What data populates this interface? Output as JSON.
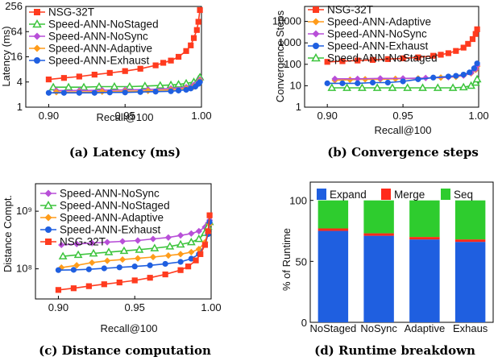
{
  "colors": {
    "NSG-32T": "#ff3b1f",
    "Speed-ANN-NoStaged": "#3cc43c",
    "Speed-ANN-NoSync": "#b84fd8",
    "Speed-ANN-Adaptive": "#ff9c1a",
    "Speed-ANN-Exhaust": "#1f5fe0",
    "Expand": "#1f5fe0",
    "Merge": "#ff2a1a",
    "Seq": "#2ecc2e"
  },
  "chart_data": [
    {
      "id": "a",
      "type": "line",
      "caption": "(a) Latency (ms)",
      "xlabel": "Recall@100",
      "ylabel": "Latency (ms)",
      "xscale": "linear",
      "yscale": "log",
      "xlim": [
        0.885,
        1.0
      ],
      "ylim": [
        1,
        256
      ],
      "xticks": [
        0.9,
        0.95,
        1.0
      ],
      "xtick_labels": [
        "0.90",
        "0.95",
        "1.00"
      ],
      "yticks": [
        1,
        4,
        16,
        64,
        256
      ],
      "ytick_labels": [
        "1",
        "4",
        "16",
        "64",
        "256"
      ],
      "legend": "top-left",
      "series": [
        {
          "name": "NSG-32T",
          "marker": "square",
          "x": [
            0.9,
            0.91,
            0.92,
            0.93,
            0.94,
            0.95,
            0.96,
            0.97,
            0.975,
            0.98,
            0.985,
            0.99,
            0.993,
            0.995,
            0.997,
            0.998,
            0.999
          ],
          "y": [
            4.6,
            5.0,
            5.4,
            6.0,
            6.6,
            7.3,
            8.3,
            10,
            11.5,
            13,
            16,
            22,
            30,
            45,
            70,
            110,
            210
          ]
        },
        {
          "name": "Speed-ANN-NoStaged",
          "marker": "triangle",
          "x": [
            0.903,
            0.913,
            0.923,
            0.933,
            0.943,
            0.953,
            0.963,
            0.973,
            0.98,
            0.985,
            0.99,
            0.995,
            0.998,
            0.999
          ],
          "y": [
            3.0,
            3.0,
            3.0,
            3.1,
            3.1,
            3.1,
            3.2,
            3.3,
            3.4,
            3.5,
            3.7,
            4.0,
            4.6,
            5.2
          ]
        },
        {
          "name": "Speed-ANN-NoSync",
          "marker": "diamond",
          "x": [
            0.905,
            0.92,
            0.935,
            0.95,
            0.965,
            0.98,
            0.99,
            0.995,
            0.998,
            0.999
          ],
          "y": [
            2.5,
            2.5,
            2.55,
            2.6,
            2.65,
            2.8,
            3.0,
            3.4,
            4.0,
            4.6
          ]
        },
        {
          "name": "Speed-ANN-Adaptive",
          "marker": "diamond",
          "x": [
            0.905,
            0.92,
            0.935,
            0.95,
            0.965,
            0.98,
            0.99,
            0.995,
            0.998,
            0.999
          ],
          "y": [
            2.3,
            2.3,
            2.35,
            2.4,
            2.45,
            2.6,
            2.8,
            3.1,
            3.7,
            4.3
          ]
        },
        {
          "name": "Speed-ANN-Exhaust",
          "marker": "circle",
          "x": [
            0.9,
            0.91,
            0.92,
            0.93,
            0.94,
            0.95,
            0.96,
            0.97,
            0.98,
            0.985,
            0.99,
            0.993,
            0.996,
            0.998,
            0.999
          ],
          "y": [
            2.2,
            2.2,
            2.2,
            2.2,
            2.25,
            2.25,
            2.3,
            2.35,
            2.4,
            2.5,
            2.6,
            2.8,
            3.1,
            3.6,
            4.0
          ]
        }
      ]
    },
    {
      "id": "b",
      "type": "line",
      "caption": "(b) Convergence steps",
      "xlabel": "Recall@100",
      "ylabel": "Convergence Steps",
      "xscale": "linear",
      "yscale": "log",
      "xlim": [
        0.885,
        1.0
      ],
      "ylim": [
        1,
        50000
      ],
      "xticks": [
        0.9,
        0.95,
        1.0
      ],
      "xtick_labels": [
        "0.90",
        "0.95",
        "1.00"
      ],
      "yticks": [
        1,
        10,
        100,
        1000,
        10000
      ],
      "ytick_labels": [
        "1",
        "10",
        "100",
        "1000",
        "10000"
      ],
      "legend": "top-left",
      "series": [
        {
          "name": "NSG-32T",
          "marker": "square",
          "x": [
            0.9,
            0.91,
            0.92,
            0.93,
            0.94,
            0.95,
            0.96,
            0.97,
            0.975,
            0.98,
            0.985,
            0.99,
            0.993,
            0.996,
            0.998,
            0.999
          ],
          "y": [
            130,
            140,
            150,
            160,
            175,
            190,
            210,
            250,
            280,
            330,
            420,
            600,
            900,
            1500,
            2600,
            4300
          ]
        },
        {
          "name": "Speed-ANN-Adaptive",
          "marker": "diamond",
          "x": [
            0.905,
            0.915,
            0.925,
            0.935,
            0.945,
            0.96,
            0.975,
            0.985,
            0.99,
            0.995,
            0.998,
            0.999
          ],
          "y": [
            18,
            19,
            20,
            20,
            21,
            22,
            24,
            26,
            30,
            38,
            55,
            80
          ]
        },
        {
          "name": "Speed-ANN-NoSync",
          "marker": "diamond",
          "x": [
            0.905,
            0.92,
            0.935,
            0.95,
            0.965,
            0.98,
            0.99,
            0.995,
            0.998,
            0.999
          ],
          "y": [
            21,
            21,
            22,
            22,
            23,
            25,
            30,
            40,
            60,
            90
          ]
        },
        {
          "name": "Speed-ANN-Exhaust",
          "marker": "circle",
          "x": [
            0.9,
            0.91,
            0.92,
            0.93,
            0.94,
            0.95,
            0.96,
            0.97,
            0.98,
            0.985,
            0.99,
            0.994,
            0.997,
            0.999
          ],
          "y": [
            13,
            13,
            13,
            14,
            14,
            16,
            20,
            24,
            27,
            29,
            33,
            42,
            65,
            110
          ]
        },
        {
          "name": "Speed-ANN-NoStaged",
          "marker": "triangle",
          "x": [
            0.903,
            0.913,
            0.923,
            0.933,
            0.943,
            0.953,
            0.963,
            0.973,
            0.983,
            0.99,
            0.995,
            0.998,
            0.999
          ],
          "y": [
            8,
            8,
            8,
            8,
            8,
            8,
            8,
            8,
            8,
            8.5,
            10,
            14,
            20
          ]
        }
      ]
    },
    {
      "id": "c",
      "type": "line",
      "caption": "(c) Distance computation",
      "xlabel": "Recall@100",
      "ylabel": "Distance Compt.",
      "xscale": "linear",
      "yscale": "log",
      "xlim": [
        0.885,
        1.0
      ],
      "ylim": [
        30000000,
        3000000000
      ],
      "xticks": [
        0.9,
        0.95,
        1.0
      ],
      "xtick_labels": [
        "0.90",
        "0.95",
        "1.00"
      ],
      "yticks": [
        100000000,
        1000000000
      ],
      "ytick_labels": [
        "10⁸",
        "10⁹"
      ],
      "legend": "top-left",
      "series": [
        {
          "name": "Speed-ANN-NoSync",
          "marker": "diamond",
          "x": [
            0.902,
            0.912,
            0.922,
            0.932,
            0.942,
            0.952,
            0.962,
            0.972,
            0.98,
            0.987,
            0.992,
            0.996,
            0.998,
            0.999
          ],
          "y": [
            260000000,
            270000000,
            280000000,
            290000000,
            300000000,
            310000000,
            330000000,
            350000000,
            380000000,
            410000000,
            450000000,
            530000000,
            620000000,
            700000000
          ]
        },
        {
          "name": "Speed-ANN-NoStaged",
          "marker": "triangle",
          "x": [
            0.903,
            0.913,
            0.923,
            0.933,
            0.943,
            0.953,
            0.963,
            0.973,
            0.98,
            0.987,
            0.992,
            0.996,
            0.998,
            0.999
          ],
          "y": [
            165000000,
            175000000,
            185000000,
            195000000,
            205000000,
            215000000,
            228000000,
            245000000,
            265000000,
            290000000,
            330000000,
            420000000,
            540000000,
            650000000
          ]
        },
        {
          "name": "Speed-ANN-Adaptive",
          "marker": "diamond",
          "x": [
            0.902,
            0.912,
            0.922,
            0.932,
            0.942,
            0.952,
            0.962,
            0.972,
            0.98,
            0.987,
            0.992,
            0.996,
            0.998,
            0.999
          ],
          "y": [
            105000000,
            115000000,
            128000000,
            138000000,
            145000000,
            152000000,
            160000000,
            170000000,
            180000000,
            195000000,
            220000000,
            290000000,
            420000000,
            600000000
          ]
        },
        {
          "name": "Speed-ANN-Exhaust",
          "marker": "circle",
          "x": [
            0.9,
            0.91,
            0.92,
            0.93,
            0.94,
            0.95,
            0.96,
            0.97,
            0.98,
            0.987,
            0.992,
            0.996,
            0.998,
            0.999
          ],
          "y": [
            95000000,
            96000000,
            98000000,
            102000000,
            106000000,
            110000000,
            115000000,
            122000000,
            132000000,
            150000000,
            180000000,
            260000000,
            400000000,
            650000000
          ]
        },
        {
          "name": "NSG-32T",
          "marker": "square",
          "x": [
            0.9,
            0.91,
            0.92,
            0.93,
            0.94,
            0.95,
            0.96,
            0.97,
            0.98,
            0.985,
            0.99,
            0.993,
            0.996,
            0.998,
            0.999
          ],
          "y": [
            43000000,
            46000000,
            50000000,
            54000000,
            58000000,
            63000000,
            70000000,
            80000000,
            95000000,
            110000000,
            140000000,
            180000000,
            260000000,
            450000000,
            850000000
          ]
        }
      ]
    },
    {
      "id": "d",
      "type": "bar",
      "stacked": true,
      "caption": "(d) Runtime breakdown",
      "ylabel": "% of Runtime",
      "ylim": [
        0,
        115
      ],
      "yticks": [
        0,
        50,
        100
      ],
      "ytick_labels": [
        "0",
        "50",
        "100"
      ],
      "legend": "top",
      "categories": [
        "NoStaged",
        "NoSync",
        "Adaptive",
        "Exhaus"
      ],
      "series": [
        {
          "name": "Expand",
          "values": [
            75,
            71,
            68,
            66
          ]
        },
        {
          "name": "Merge",
          "values": [
            2,
            2,
            2,
            2
          ]
        },
        {
          "name": "Seq",
          "values": [
            23,
            27,
            30,
            32
          ]
        }
      ]
    }
  ]
}
